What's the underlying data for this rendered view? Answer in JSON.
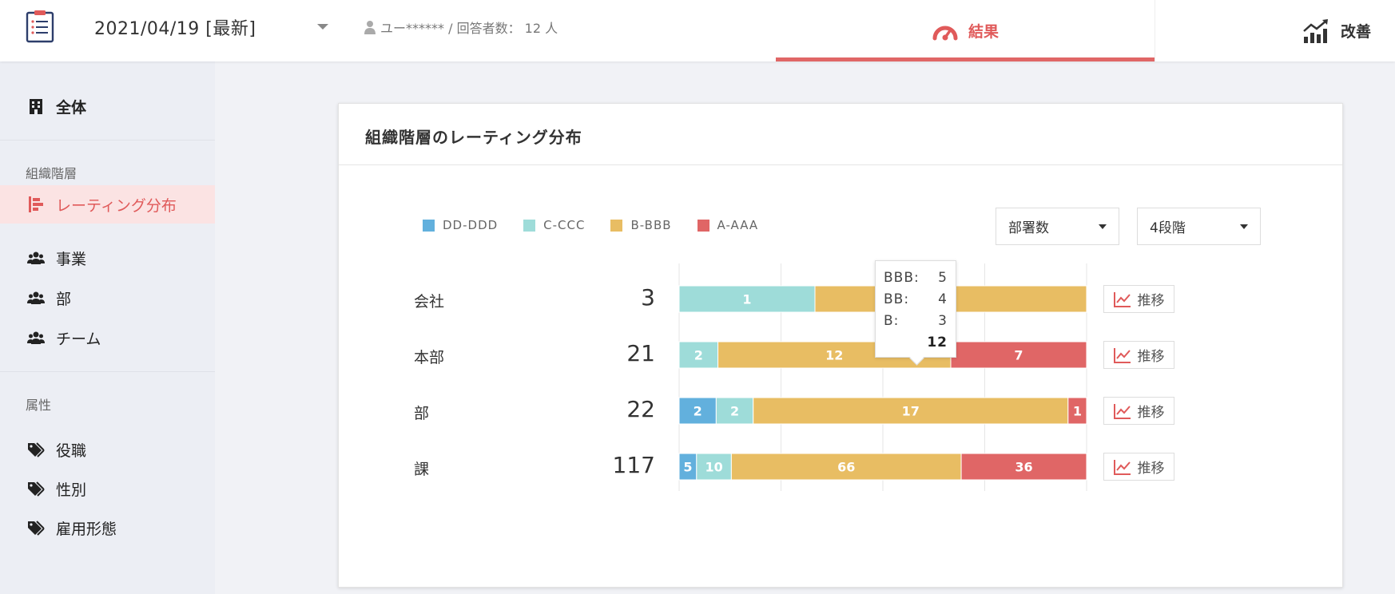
{
  "header": {
    "date": "2021/04/19 [最新]",
    "user": "ユー****** / 回答者数： 12 人",
    "tab_result": "結果",
    "tab_improve": "改善"
  },
  "sidebar": {
    "overall": "全体",
    "section_org": "組織階層",
    "rating": "レーティング分布",
    "business": "事業",
    "department": "部",
    "team": "チーム",
    "section_attr": "属性",
    "position": "役職",
    "gender": "性別",
    "employment": "雇用形態"
  },
  "card": {
    "title": "組織階層のレーティング分布",
    "select_count": "部署数",
    "select_level": "4段階",
    "trend_label": "推移"
  },
  "chart_data": {
    "type": "bar",
    "stacked": true,
    "orientation": "horizontal",
    "categories": [
      "会社",
      "本部",
      "部",
      "課"
    ],
    "totals": [
      "3",
      "21",
      "22",
      "117"
    ],
    "series": [
      {
        "name": "DD-DDD",
        "color": "#62b0dd",
        "values": [
          0,
          0,
          2,
          5
        ]
      },
      {
        "name": "C-CCC",
        "color": "#9edcd9",
        "values": [
          1,
          2,
          2,
          10
        ]
      },
      {
        "name": "B-BBB",
        "color": "#e8bd63",
        "values": [
          2,
          12,
          17,
          66
        ]
      },
      {
        "name": "A-AAA",
        "color": "#e06666",
        "values": [
          0,
          7,
          1,
          36
        ]
      }
    ],
    "tooltip": {
      "rows": [
        {
          "label": "BBB:",
          "value": "5"
        },
        {
          "label": "BB:",
          "value": "4"
        },
        {
          "label": "B:",
          "value": "3"
        }
      ],
      "total": "12"
    }
  },
  "colors": {
    "accent": "#e05a5a"
  }
}
